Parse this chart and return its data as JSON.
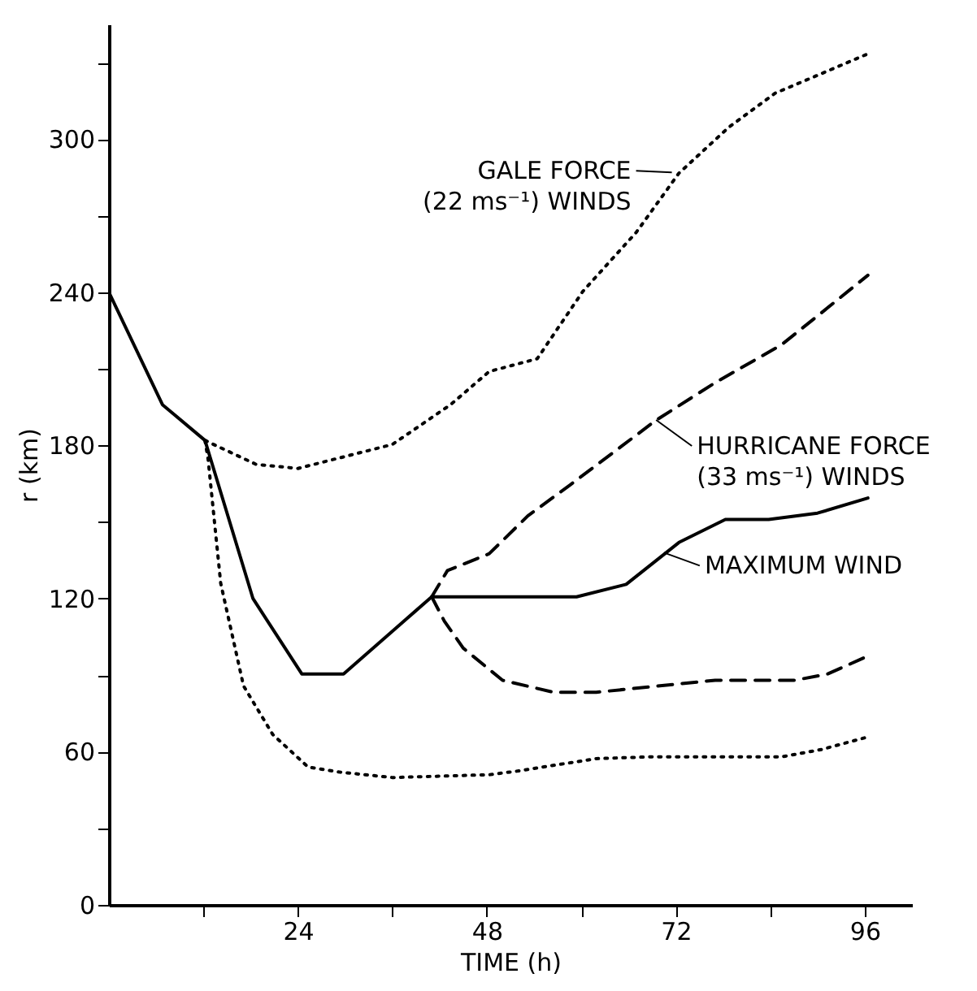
{
  "chart_data": {
    "type": "line",
    "xlabel": "TIME (h)",
    "ylabel": "r (km)",
    "xlim": [
      0,
      102
    ],
    "ylim": [
      0,
      345
    ],
    "xticks": [
      {
        "value": 12,
        "label": null
      },
      24,
      {
        "value": 36,
        "label": null
      },
      48,
      {
        "value": 60,
        "label": null
      },
      72,
      {
        "value": 84,
        "label": null
      },
      96
    ],
    "yticks": [
      0,
      {
        "value": 30,
        "label": null
      },
      60,
      {
        "value": 90,
        "label": null
      },
      120,
      {
        "value": 150,
        "label": null
      },
      180,
      {
        "value": 210,
        "label": null
      },
      240,
      {
        "value": 270,
        "label": null
      },
      300,
      {
        "value": 330,
        "label": null
      }
    ],
    "grid": false,
    "marker": "none",
    "series": [
      {
        "color": "#000000",
        "line_style": "solid",
        "x": [
          0,
          6.8,
          12.2,
          18.3,
          24.5,
          29.8,
          41,
          59.4,
          65.7,
          72.4,
          78.3,
          83.8,
          90,
          96.4
        ],
        "values": [
          240,
          196,
          182,
          120,
          90.5,
          90.5,
          120.7,
          120.7,
          125.6,
          142,
          151,
          151,
          153.5,
          159.4
        ]
      },
      {
        "color": "#000000",
        "line_style": "dotted",
        "x": [
          12.2,
          18.7,
          24,
          36,
          43.4,
          48.3,
          54.4,
          60.2,
          67,
          72.4,
          78.7,
          84.6,
          90.5,
          96.8
        ],
        "values": [
          182,
          172.6,
          171,
          180.4,
          196,
          209,
          214,
          240.4,
          263.6,
          286.7,
          304.6,
          318,
          325.7,
          334
        ]
      },
      {
        "color": "#000000",
        "line_style": "dotted",
        "x": [
          12.2,
          12.6,
          14.2,
          17.1,
          20.8,
          25.3,
          29.4,
          36,
          48.3,
          51.8,
          61.9,
          68.6,
          85.4,
          90.5,
          96.4
        ],
        "values": [
          182,
          174.6,
          126,
          85.8,
          66.8,
          54,
          52,
          49.9,
          51,
          52.4,
          57.3,
          58,
          58,
          60.9,
          65.8
        ]
      },
      {
        "color": "#000000",
        "line_style": "dashed",
        "x": [
          41,
          43,
          48.3,
          53.2,
          58.6,
          69.5,
          77,
          85.4,
          90.5,
          96.4
        ],
        "values": [
          120.7,
          131,
          137.6,
          152.4,
          164.6,
          189.9,
          204.6,
          219.4,
          232,
          246.7
        ]
      },
      {
        "color": "#000000",
        "line_style": "dashed",
        "x": [
          41,
          42.6,
          45,
          50,
          56.5,
          61.9,
          68.6,
          77,
          87.1,
          91.3,
          96.4
        ],
        "values": [
          120.7,
          111.2,
          100.6,
          88,
          83.3,
          83.3,
          85.4,
          88,
          88,
          90.5,
          97.5
        ]
      }
    ],
    "annotations": [
      {
        "text": "GALE FORCE\n(22 ms⁻¹) WINDS",
        "x": 71.5,
        "y": 287
      },
      {
        "text": "HURRICANE FORCE\n(33 ms⁻¹) WINDS",
        "x": 69.5,
        "y": 190
      },
      {
        "text": "MAXIMUM WIND",
        "x": 70.5,
        "y": 138
      }
    ]
  }
}
